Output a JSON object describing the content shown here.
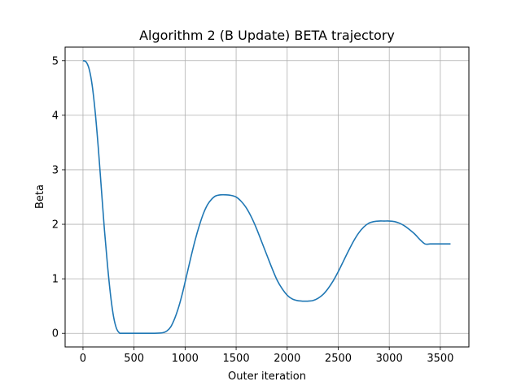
{
  "chart_data": {
    "type": "line",
    "title": "Algorithm 2 (B Update) BETA trajectory",
    "xlabel": "Outer iteration",
    "ylabel": "Beta",
    "xlim": [
      -175,
      3780
    ],
    "ylim": [
      -0.25,
      5.25
    ],
    "xticks": [
      0,
      500,
      1000,
      1500,
      2000,
      2500,
      3000,
      3500
    ],
    "yticks": [
      0,
      1,
      2,
      3,
      4,
      5
    ],
    "grid": true,
    "line_color": "#1f77b4",
    "series": [
      {
        "name": "",
        "x": [
          0,
          30,
          60,
          90,
          120,
          150,
          180,
          210,
          240,
          270,
          300,
          330,
          360,
          370,
          400,
          500,
          600,
          700,
          780,
          820,
          860,
          900,
          940,
          980,
          1020,
          1060,
          1100,
          1140,
          1180,
          1220,
          1260,
          1300,
          1350,
          1400,
          1450,
          1500,
          1550,
          1600,
          1650,
          1700,
          1750,
          1800,
          1850,
          1900,
          1950,
          2000,
          2050,
          2100,
          2150,
          2200,
          2250,
          2300,
          2350,
          2400,
          2450,
          2500,
          2550,
          2600,
          2650,
          2700,
          2750,
          2800,
          2850,
          2900,
          2950,
          3000,
          3050,
          3100,
          3150,
          3200,
          3250,
          3300,
          3350,
          3400,
          3450,
          3500,
          3550,
          3600
        ],
        "y": [
          5.0,
          4.98,
          4.85,
          4.55,
          4.05,
          3.4,
          2.65,
          1.9,
          1.25,
          0.7,
          0.3,
          0.08,
          0.0,
          0.0,
          0.0,
          0.0,
          0.0,
          0.0,
          0.01,
          0.04,
          0.12,
          0.28,
          0.5,
          0.78,
          1.1,
          1.42,
          1.72,
          1.98,
          2.2,
          2.36,
          2.46,
          2.52,
          2.54,
          2.54,
          2.53,
          2.5,
          2.42,
          2.3,
          2.13,
          1.92,
          1.68,
          1.44,
          1.2,
          0.98,
          0.82,
          0.7,
          0.63,
          0.6,
          0.59,
          0.59,
          0.6,
          0.64,
          0.71,
          0.82,
          0.96,
          1.13,
          1.32,
          1.51,
          1.69,
          1.84,
          1.95,
          2.02,
          2.05,
          2.06,
          2.06,
          2.06,
          2.05,
          2.02,
          1.97,
          1.9,
          1.82,
          1.72,
          1.64,
          1.64,
          1.64,
          1.64,
          1.64,
          1.64
        ]
      }
    ]
  }
}
